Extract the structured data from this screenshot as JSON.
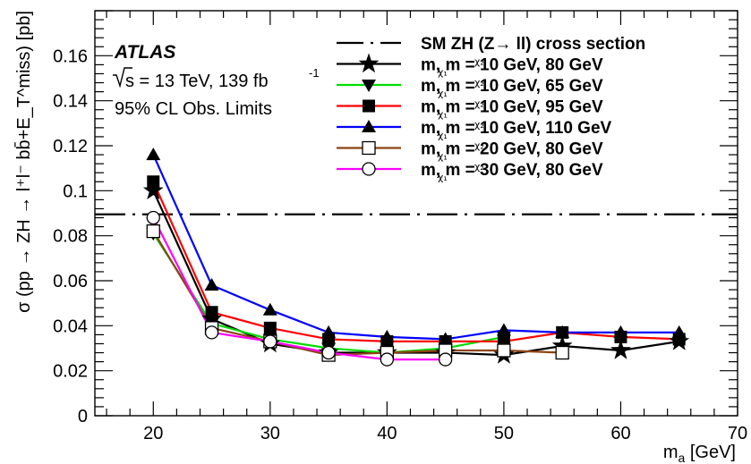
{
  "chart_data": {
    "type": "line",
    "experiment": "ATLAS",
    "energy_label": "s = 13 TeV, 139 fb",
    "lumi_exponent": "-1",
    "limit_label": "95% CL Obs. Limits",
    "xlabel": "m",
    "xlabel_sub": "a",
    "xlabel_unit": " [GeV]",
    "ylabel": "σ (pp → ZH → l⁺l⁻ bb̄+E_T^miss) [pb]",
    "xlim": [
      15,
      70
    ],
    "ylim": [
      0,
      0.18
    ],
    "xticks": [
      20,
      30,
      40,
      50,
      60,
      70
    ],
    "yticks": [
      0,
      0.02,
      0.04,
      0.06,
      0.08,
      0.1,
      0.12,
      0.14,
      0.16
    ],
    "ytick_labels": [
      "0",
      "0.02",
      "0.04",
      "0.06",
      "0.08",
      "0.1",
      "0.12",
      "0.14",
      "0.16"
    ],
    "reference": {
      "name": "SM ZH (Z→ ll) cross section",
      "value": 0.0895,
      "style": "dash-dot"
    },
    "series": [
      {
        "name": "m_χ1, m_χ2 = 10 GeV, 80 GeV",
        "color": "#000000",
        "marker": "star",
        "x": [
          20,
          25,
          30,
          35,
          40,
          45,
          50,
          55,
          60,
          65
        ],
        "y": [
          0.1,
          0.043,
          0.032,
          0.028,
          0.028,
          0.028,
          0.027,
          0.031,
          0.029,
          0.033
        ]
      },
      {
        "name": "m_χ1, m_χ2 = 10 GeV, 65 GeV",
        "color": "#00dd00",
        "marker": "triangle-down",
        "x": [
          20,
          25,
          30,
          35,
          40,
          45,
          50
        ],
        "y": [
          0.081,
          0.041,
          0.034,
          0.03,
          0.028,
          0.03,
          0.035
        ]
      },
      {
        "name": "m_χ1, m_χ2 = 10 GeV, 95 GeV",
        "color": "#ff0000",
        "marker": "square",
        "x": [
          20,
          25,
          30,
          35,
          40,
          45,
          50,
          55,
          60,
          65
        ],
        "y": [
          0.104,
          0.046,
          0.039,
          0.034,
          0.033,
          0.033,
          0.033,
          0.037,
          0.035,
          0.034
        ]
      },
      {
        "name": "m_χ1, m_χ2 = 10 GeV, 110 GeV",
        "color": "#0000ff",
        "marker": "triangle-up",
        "x": [
          20,
          25,
          30,
          35,
          40,
          45,
          50,
          55,
          60,
          65
        ],
        "y": [
          0.116,
          0.058,
          0.047,
          0.037,
          0.035,
          0.034,
          0.038,
          0.037,
          0.037,
          0.037
        ]
      },
      {
        "name": "m_χ1, m_χ2 = 20 GeV, 80 GeV",
        "color": "#8b4513",
        "marker": "open-square",
        "x": [
          20,
          25,
          30,
          35,
          40,
          45,
          50,
          55
        ],
        "y": [
          0.082,
          0.039,
          0.033,
          0.027,
          0.028,
          0.029,
          0.029,
          0.028
        ]
      },
      {
        "name": "m_χ1, m_χ2 = 30 GeV, 80 GeV",
        "color": "#ff00ff",
        "marker": "open-circle",
        "x": [
          20,
          25,
          30,
          35,
          40,
          45
        ],
        "y": [
          0.088,
          0.037,
          0.033,
          0.028,
          0.025,
          0.025
        ]
      }
    ],
    "legend": {
      "entries": [
        {
          "label": "SM ZH (Z→ ll) cross section",
          "symbol": "dash-dot"
        },
        {
          "label": "m, m = 10 GeV, 80 GeV",
          "series": 0
        },
        {
          "label": "m, m = 10 GeV, 65 GeV",
          "series": 1
        },
        {
          "label": "m, m = 10 GeV, 95 GeV",
          "series": 2
        },
        {
          "label": "m, m = 10 GeV, 110 GeV",
          "series": 3
        },
        {
          "label": "m, m = 20 GeV, 80 GeV",
          "series": 4
        },
        {
          "label": "m, m = 30 GeV, 80 GeV",
          "series": 5
        }
      ],
      "placement": "top-right"
    },
    "grid": false
  }
}
